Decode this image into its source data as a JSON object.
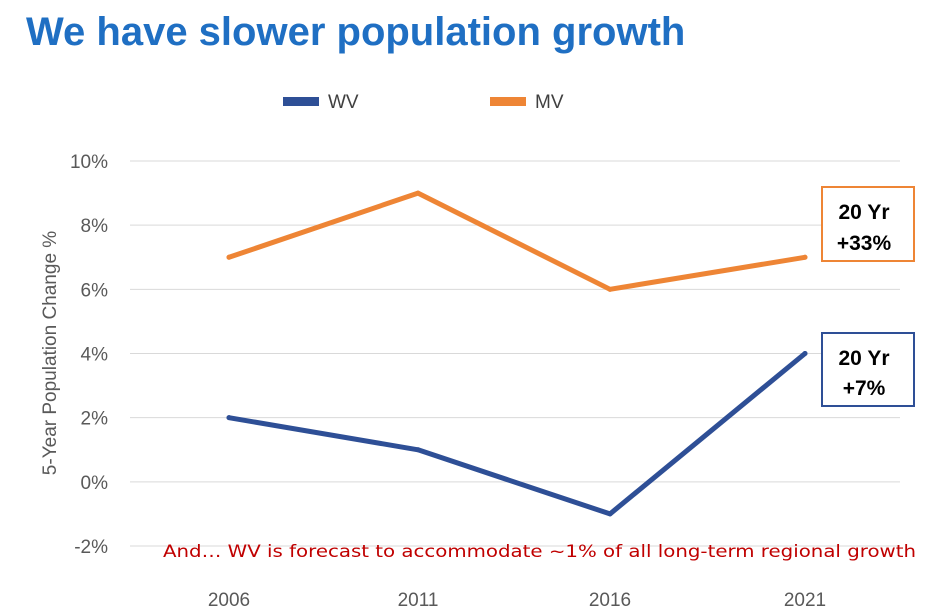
{
  "title": "We have slower population growth",
  "colors": {
    "title": "#1f6fc3",
    "wv": "#2e4f96",
    "mv": "#ee8535",
    "note": "#c00000",
    "grid": "#d9d9d9"
  },
  "chart_data": {
    "type": "line",
    "title": "We have slower population growth",
    "xlabel": "",
    "ylabel": "5-Year Population Change %",
    "x": [
      "2006",
      "2011",
      "2016",
      "2021"
    ],
    "ylim": [
      -2,
      10
    ],
    "yticks": [
      -2,
      0,
      2,
      4,
      6,
      8,
      10
    ],
    "ytick_labels": [
      "-2%",
      "0%",
      "2%",
      "4%",
      "6%",
      "8%",
      "10%"
    ],
    "grid": "horizontal",
    "legend_position": "top",
    "series": [
      {
        "name": "WV",
        "color": "#2e4f96",
        "values": [
          2,
          1,
          -1,
          4
        ]
      },
      {
        "name": "MV",
        "color": "#ee8535",
        "values": [
          7,
          9,
          6,
          7
        ]
      }
    ],
    "annotations": {
      "mv_callout": [
        "20 Yr",
        "+33%"
      ],
      "wv_callout": [
        "20 Yr",
        "+7%"
      ],
      "note": "And… WV is forecast to accommodate ~1% of all long-term regional growth"
    }
  }
}
